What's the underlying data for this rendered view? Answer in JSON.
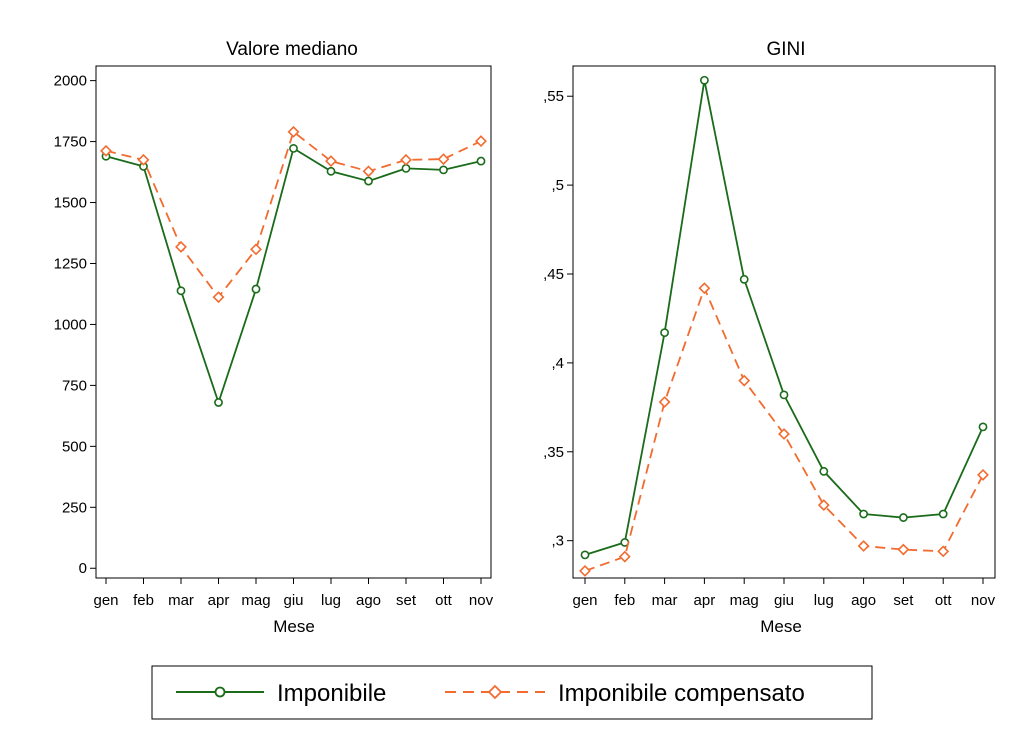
{
  "chart_data": [
    {
      "type": "line",
      "title": "Valore mediano",
      "xlabel": "Mese",
      "ylabel": "",
      "categories": [
        "gen",
        "feb",
        "mar",
        "apr",
        "mag",
        "giu",
        "lug",
        "ago",
        "set",
        "ott",
        "nov"
      ],
      "ylim": [
        -40,
        2060
      ],
      "yticks": [
        0,
        250,
        500,
        750,
        1000,
        1250,
        1500,
        1750,
        2000
      ],
      "ytick_labels": [
        "0",
        "250",
        "500",
        "750",
        "1000",
        "1250",
        "1500",
        "1750",
        "2000"
      ],
      "grid": false,
      "series": [
        {
          "name": "Imponibile",
          "color": "#1a6b1a",
          "marker": "circle",
          "dash": "solid",
          "values": [
            1690,
            1648,
            1138,
            680,
            1145,
            1722,
            1628,
            1588,
            1640,
            1634,
            1670
          ]
        },
        {
          "name": "Imponibile compensato",
          "color": "#f26b2f",
          "marker": "diamond",
          "dash": "dashed",
          "values": [
            1712,
            1675,
            1318,
            1112,
            1308,
            1790,
            1670,
            1628,
            1675,
            1678,
            1752
          ]
        }
      ]
    },
    {
      "type": "line",
      "title": "GINI",
      "xlabel": "Mese",
      "ylabel": "",
      "categories": [
        "gen",
        "feb",
        "mar",
        "apr",
        "mag",
        "giu",
        "lug",
        "ago",
        "set",
        "ott",
        "nov"
      ],
      "ylim": [
        0.279,
        0.567
      ],
      "yticks": [
        0.3,
        0.35,
        0.4,
        0.45,
        0.5,
        0.55
      ],
      "ytick_labels": [
        ",3",
        ",35",
        ",4",
        ",45",
        ",5",
        ",55"
      ],
      "grid": false,
      "series": [
        {
          "name": "Imponibile",
          "color": "#1a6b1a",
          "marker": "circle",
          "dash": "solid",
          "values": [
            0.292,
            0.299,
            0.417,
            0.559,
            0.447,
            0.382,
            0.339,
            0.315,
            0.313,
            0.315,
            0.364
          ]
        },
        {
          "name": "Imponibile compensato",
          "color": "#f26b2f",
          "marker": "diamond",
          "dash": "dashed",
          "values": [
            0.283,
            0.291,
            0.378,
            0.442,
            0.39,
            0.36,
            0.32,
            0.297,
            0.295,
            0.294,
            0.337
          ]
        }
      ]
    }
  ],
  "legend": {
    "position": "bottom",
    "entries": [
      {
        "label": "Imponibile",
        "color": "#1a6b1a",
        "marker": "circle",
        "dash": "solid"
      },
      {
        "label": "Imponibile compensato",
        "color": "#f26b2f",
        "marker": "diamond",
        "dash": "dashed"
      }
    ]
  }
}
